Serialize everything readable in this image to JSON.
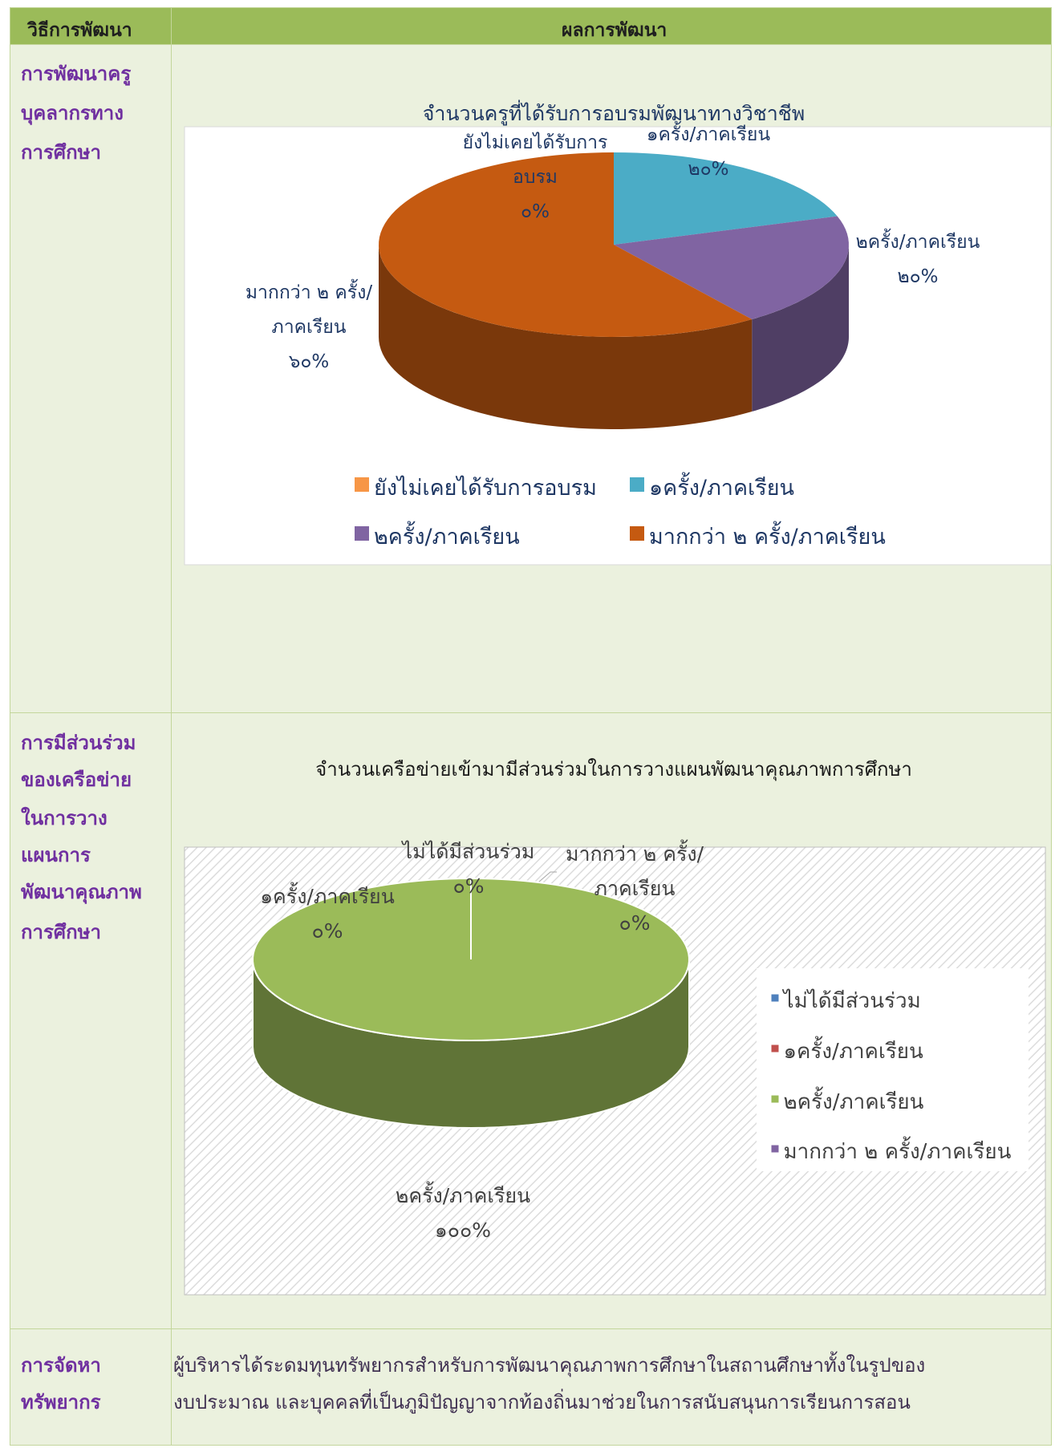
{
  "table": {
    "header": {
      "method": "วิธีการพัฒนา",
      "result": "ผลการพัฒนา"
    },
    "rows": [
      {
        "method_lines": [
          "การพัฒนาครู",
          "บุคลากรทาง",
          "การศึกษา"
        ]
      },
      {
        "method_lines": [
          "การมีส่วนร่วม",
          "ของเครือข่าย",
          "ในการวาง",
          "แผนการ",
          "พัฒนาคุณภาพ",
          "การศึกษา"
        ]
      },
      {
        "method_lines": [
          "การจัดหา",
          "ทรัพยากร"
        ],
        "result_lines": [
          "ผู้บริหารได้ระดมทุนทรัพยากรสำหรับการพัฒนาคุณภาพการศึกษาในสถานศึกษาทั้งในรูปของ",
          "งบประมาณ และบุคคลที่เป็นภูมิปัญญาจากท้องถิ่นมาช่วยในการสนับสนุนการเรียนการสอน"
        ]
      }
    ]
  },
  "chart_data": [
    {
      "type": "pie",
      "title": "จำนวนครูที่ได้รับการอบรมพัฒนาทางวิชาชีพ",
      "categories": [
        "ยังไม่เคยได้รับการอบรม",
        "๑ครั้ง/ภาคเรียน",
        "๒ครั้ง/ภาคเรียน",
        "มากกว่า ๒ ครั้ง/ภาคเรียน"
      ],
      "values": [
        0,
        20,
        20,
        60
      ],
      "value_labels": [
        "๐%",
        "๒๐%",
        "๒๐%",
        "๖๐%"
      ],
      "colors": [
        "#f79646",
        "#4bacc6",
        "#8064a2",
        "#c55a11"
      ],
      "legend": "bottom"
    },
    {
      "type": "pie",
      "title": "จำนวนเครือข่ายเข้ามามีส่วนร่วมในการวางแผนพัฒนาคุณภาพการศึกษา",
      "categories": [
        "ไม่ได้มีส่วนร่วม",
        "๑ครั้ง/ภาคเรียน",
        "๒ครั้ง/ภาคเรียน",
        "มากกว่า ๒ ครั้ง/ภาคเรียน"
      ],
      "values": [
        0,
        0,
        100,
        0
      ],
      "value_labels": [
        "๐%",
        "๐%",
        "๑๐๐%",
        "๐%"
      ],
      "colors": [
        "#4f81bd",
        "#c0504d",
        "#9bbb59",
        "#8064a2"
      ],
      "legend": "right"
    }
  ]
}
